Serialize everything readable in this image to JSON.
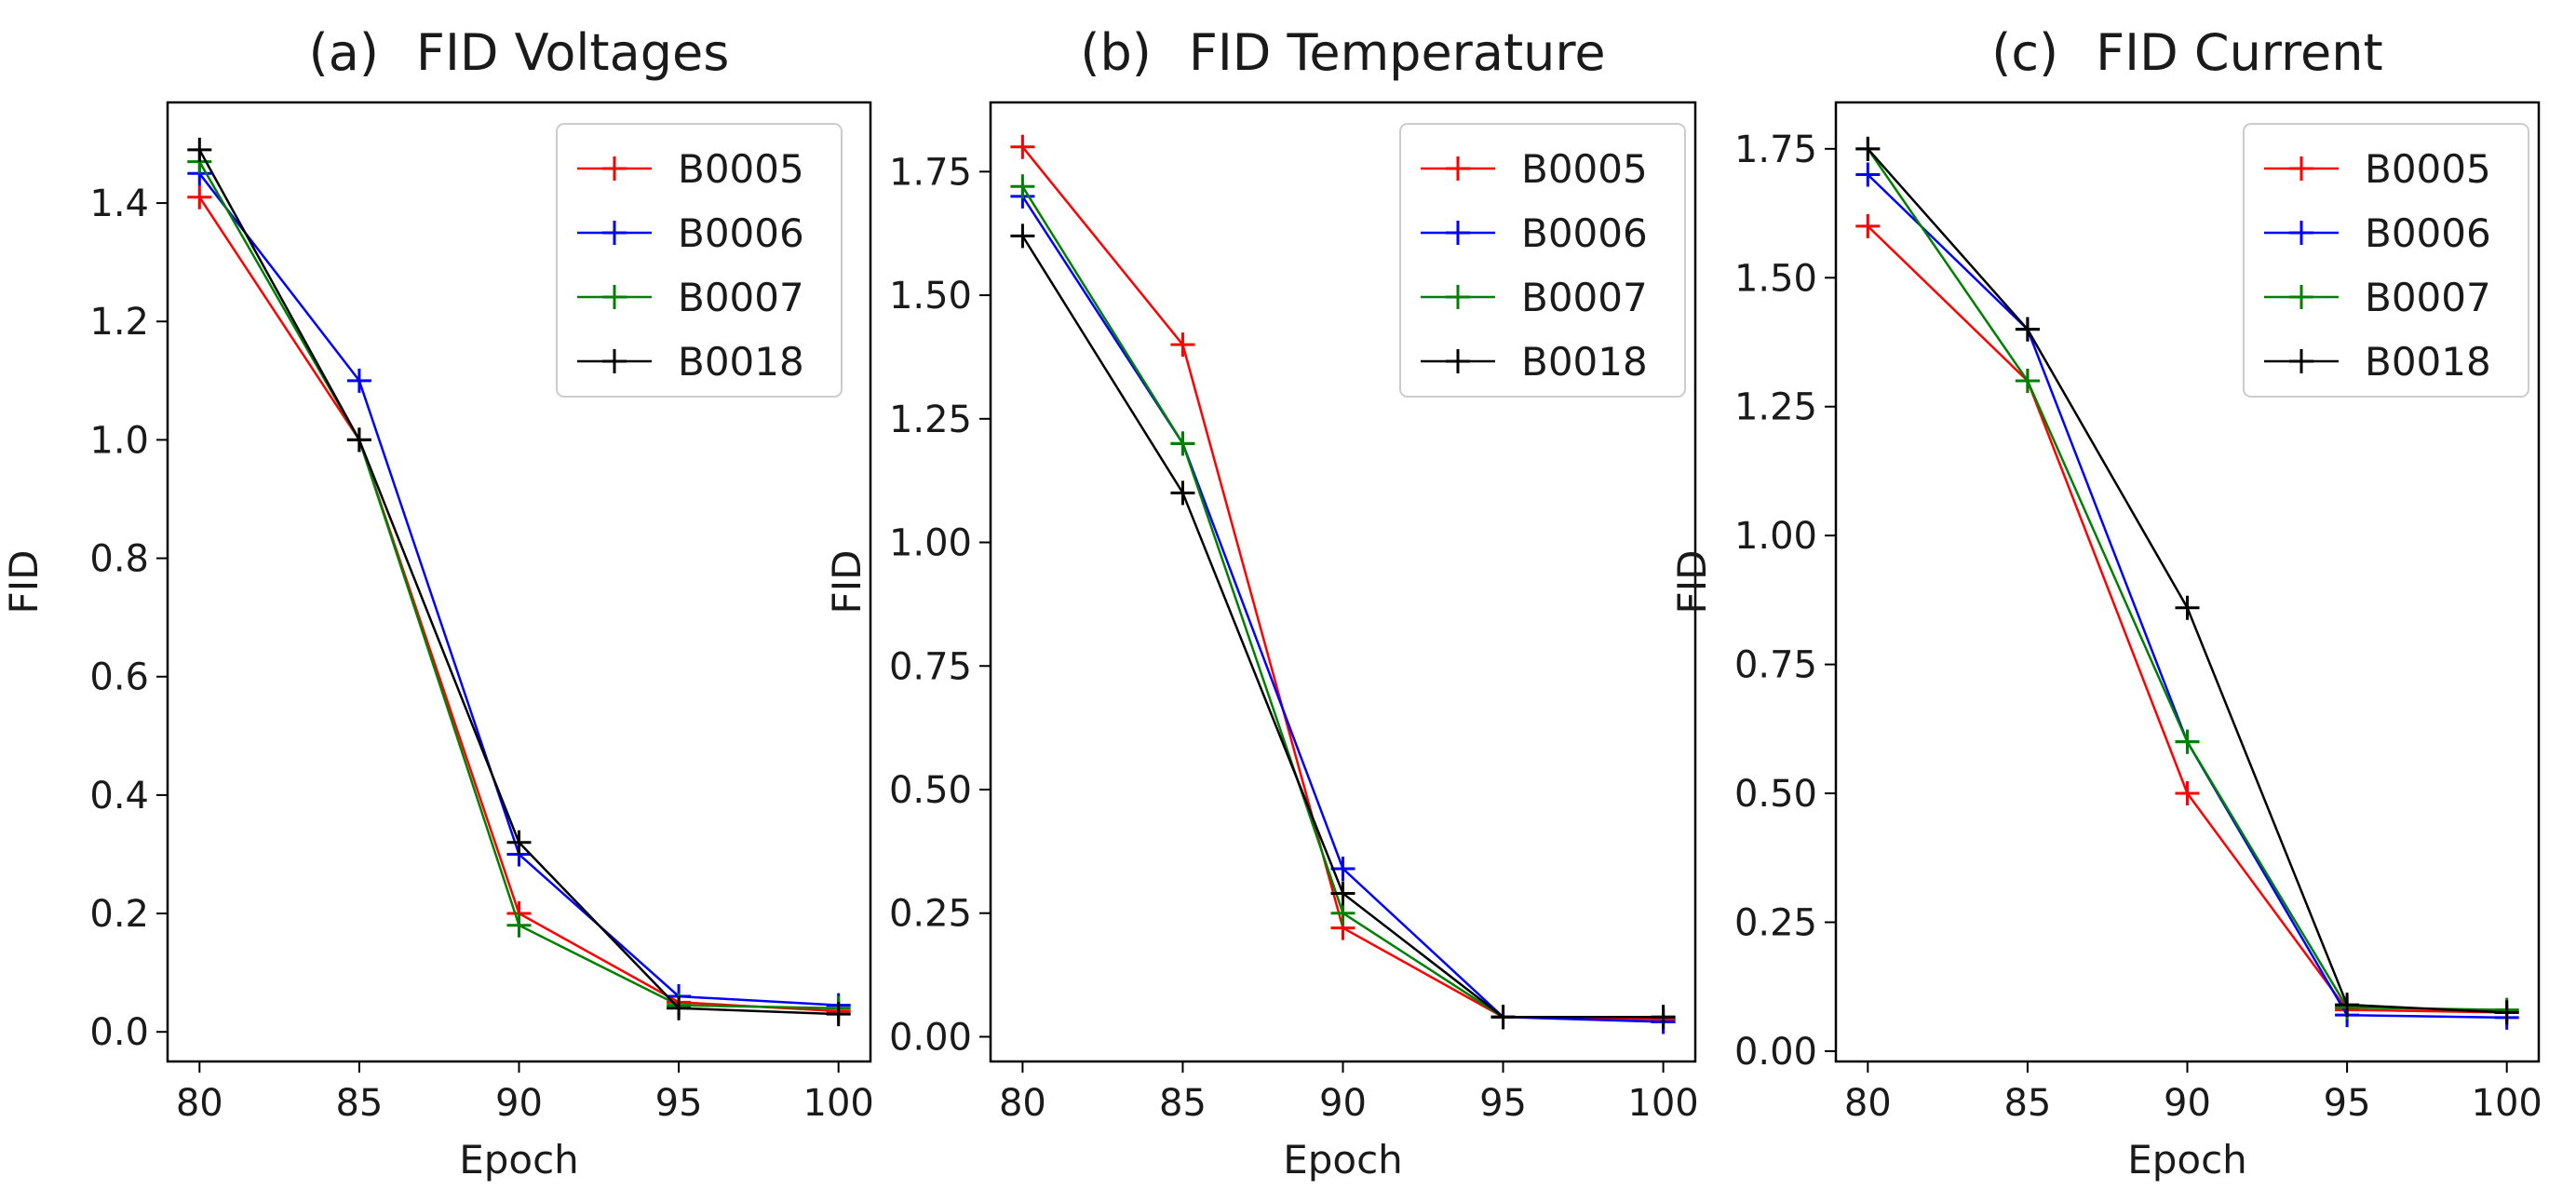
{
  "chart_data": [
    {
      "type": "line",
      "panel": "(a)",
      "title": "FID Voltages",
      "xlabel": "Epoch",
      "ylabel": "FID",
      "x": [
        80,
        85,
        90,
        95,
        100
      ],
      "xlim": [
        79,
        101
      ],
      "ylim": [
        -0.05,
        1.57
      ],
      "xticks": [
        80,
        85,
        90,
        95,
        100
      ],
      "yticks": [
        0.0,
        0.2,
        0.4,
        0.6,
        0.8,
        1.0,
        1.2,
        1.4
      ],
      "ytick_labels": [
        "0.0",
        "0.2",
        "0.4",
        "0.6",
        "0.8",
        "1.0",
        "1.2",
        "1.4"
      ],
      "legend_position": "top-right",
      "series": [
        {
          "name": "B0005",
          "color": "#ff0000",
          "values": [
            1.41,
            1.0,
            0.2,
            0.05,
            0.035
          ]
        },
        {
          "name": "B0006",
          "color": "#0000ff",
          "values": [
            1.45,
            1.1,
            0.3,
            0.06,
            0.045
          ]
        },
        {
          "name": "B0007",
          "color": "#008000",
          "values": [
            1.47,
            1.0,
            0.18,
            0.045,
            0.04
          ]
        },
        {
          "name": "B0018",
          "color": "#000000",
          "values": [
            1.49,
            1.0,
            0.32,
            0.04,
            0.03
          ]
        }
      ]
    },
    {
      "type": "line",
      "panel": "(b)",
      "title": "FID Temperature",
      "xlabel": "Epoch",
      "ylabel": "FID",
      "x": [
        80,
        85,
        90,
        95,
        100
      ],
      "xlim": [
        79,
        101
      ],
      "ylim": [
        -0.05,
        1.89
      ],
      "xticks": [
        80,
        85,
        90,
        95,
        100
      ],
      "yticks": [
        0.0,
        0.25,
        0.5,
        0.75,
        1.0,
        1.25,
        1.5,
        1.75
      ],
      "ytick_labels": [
        "0.00",
        "0.25",
        "0.50",
        "0.75",
        "1.00",
        "1.25",
        "1.50",
        "1.75"
      ],
      "legend_position": "top-right",
      "series": [
        {
          "name": "B0005",
          "color": "#ff0000",
          "values": [
            1.8,
            1.4,
            0.22,
            0.04,
            0.035
          ]
        },
        {
          "name": "B0006",
          "color": "#0000ff",
          "values": [
            1.7,
            1.2,
            0.34,
            0.04,
            0.03
          ]
        },
        {
          "name": "B0007",
          "color": "#008000",
          "values": [
            1.72,
            1.2,
            0.25,
            0.04,
            0.04
          ]
        },
        {
          "name": "B0018",
          "color": "#000000",
          "values": [
            1.62,
            1.1,
            0.29,
            0.04,
            0.04
          ]
        }
      ]
    },
    {
      "type": "line",
      "panel": "(c)",
      "title": "FID Current",
      "xlabel": "Epoch",
      "ylabel": "FID",
      "x": [
        80,
        85,
        90,
        95,
        100
      ],
      "xlim": [
        79,
        101
      ],
      "ylim": [
        -0.02,
        1.84
      ],
      "xticks": [
        80,
        85,
        90,
        95,
        100
      ],
      "yticks": [
        0.0,
        0.25,
        0.5,
        0.75,
        1.0,
        1.25,
        1.5,
        1.75
      ],
      "ytick_labels": [
        "0.00",
        "0.25",
        "0.50",
        "0.75",
        "1.00",
        "1.25",
        "1.50",
        "1.75"
      ],
      "legend_position": "top-right",
      "series": [
        {
          "name": "B0005",
          "color": "#ff0000",
          "values": [
            1.6,
            1.3,
            0.5,
            0.08,
            0.075
          ]
        },
        {
          "name": "B0006",
          "color": "#0000ff",
          "values": [
            1.7,
            1.4,
            0.6,
            0.07,
            0.065
          ]
        },
        {
          "name": "B0007",
          "color": "#008000",
          "values": [
            1.75,
            1.3,
            0.6,
            0.085,
            0.08
          ]
        },
        {
          "name": "B0018",
          "color": "#000000",
          "values": [
            1.75,
            1.4,
            0.86,
            0.09,
            0.075
          ]
        }
      ]
    }
  ]
}
